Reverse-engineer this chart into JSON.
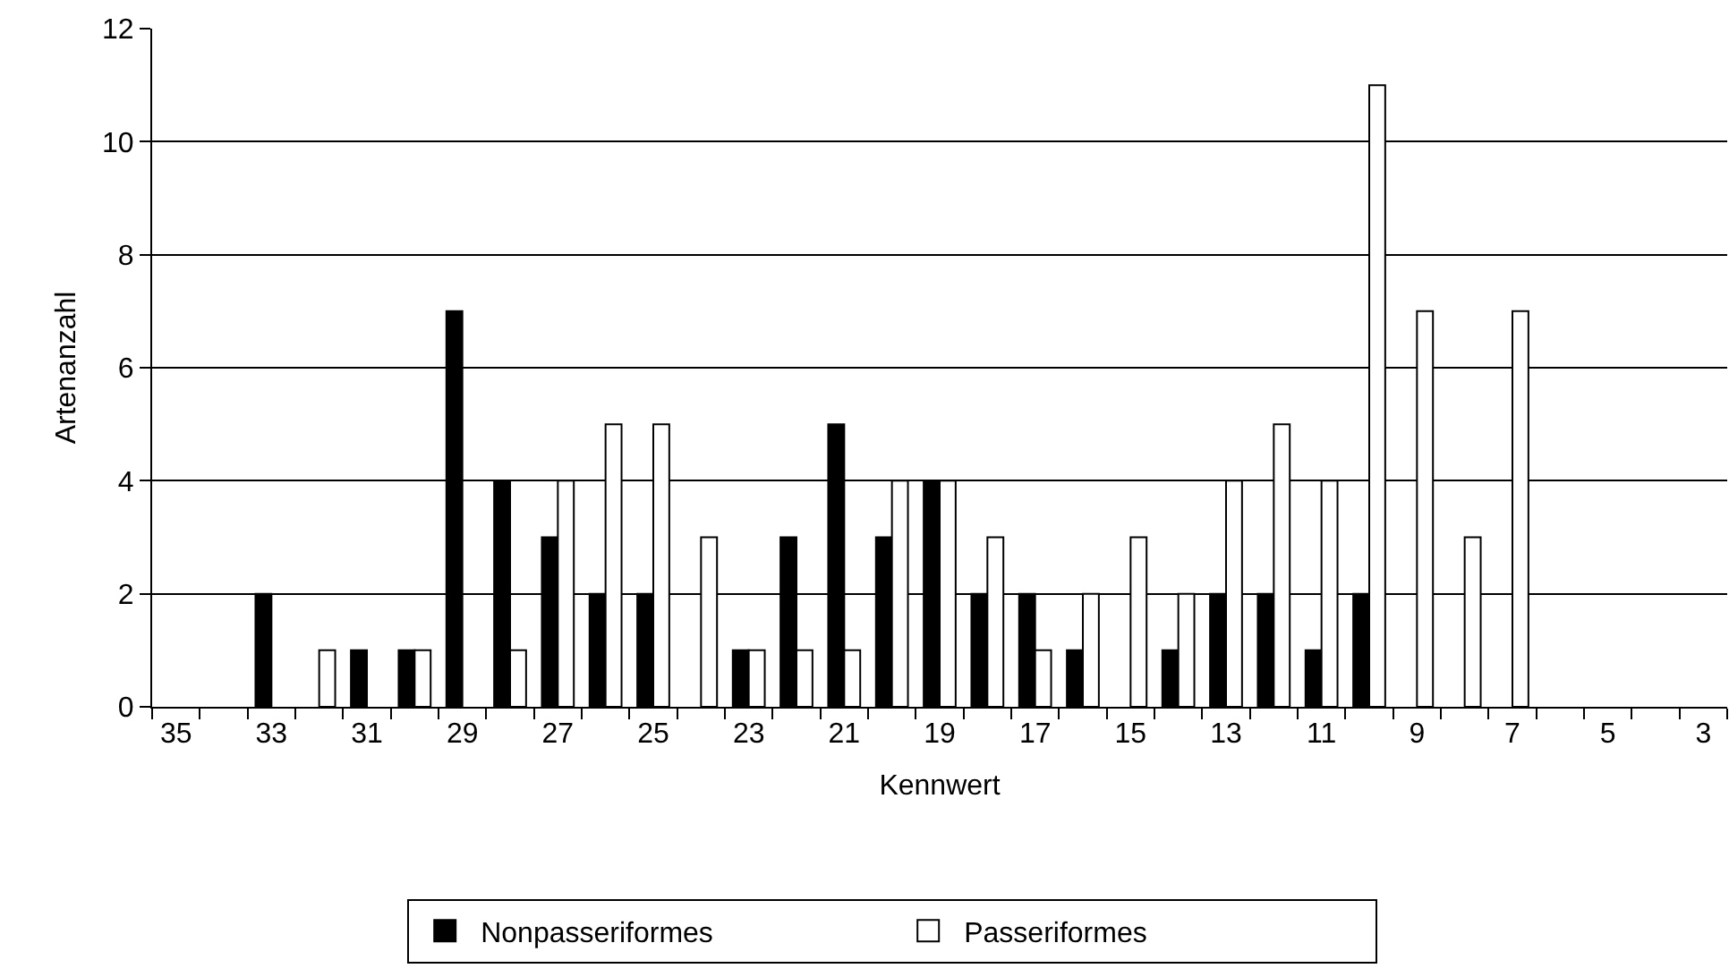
{
  "chart_data": {
    "type": "bar",
    "xlabel": "Kennwert",
    "ylabel": "Artenanzahl",
    "categories": [
      "35",
      null,
      "33",
      null,
      "31",
      null,
      "29",
      null,
      "27",
      null,
      "25",
      null,
      "23",
      null,
      "21",
      null,
      "19",
      null,
      "17",
      null,
      "15",
      null,
      "13",
      null,
      "11",
      null,
      "9",
      null,
      "7",
      null,
      "5",
      null,
      "3"
    ],
    "series": [
      {
        "name": "Nonpasseriformes",
        "color": "#000000",
        "values": [
          0,
          0,
          2,
          0,
          1,
          1,
          7,
          4,
          3,
          2,
          2,
          0,
          1,
          3,
          5,
          3,
          4,
          2,
          2,
          1,
          0,
          1,
          2,
          2,
          1,
          2,
          0,
          0,
          0,
          0,
          0,
          0,
          0
        ]
      },
      {
        "name": "Passeriformes",
        "color": "#ffffff",
        "values": [
          0,
          0,
          0,
          1,
          0,
          1,
          0,
          1,
          4,
          5,
          5,
          3,
          1,
          1,
          1,
          4,
          4,
          3,
          1,
          2,
          3,
          2,
          4,
          5,
          4,
          11,
          7,
          3,
          7,
          0,
          0,
          0,
          0
        ]
      }
    ],
    "ylim": [
      0,
      12
    ],
    "yticks": [
      0,
      2,
      4,
      6,
      8,
      10,
      12
    ],
    "grid": "y",
    "legend": "bottom"
  }
}
